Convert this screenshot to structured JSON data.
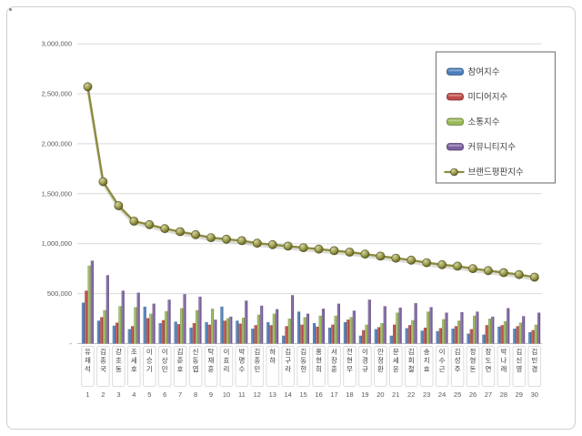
{
  "page": {
    "background": "#ffffff",
    "frame_border_color": "#cfcfcf"
  },
  "chart_data": {
    "type": "bar+line",
    "title": "",
    "grid": true,
    "gridline_color": "#d9d9d9",
    "axis_text_color": "#595959",
    "categories": [
      "유재석",
      "김종국",
      "강호동",
      "조세호",
      "이승기",
      "이상민",
      "김준호",
      "신동엽",
      "탁재훈",
      "이효리",
      "박명수",
      "김종민",
      "하하",
      "김구라",
      "김동현",
      "홍현희",
      "서장훈",
      "전현무",
      "이경규",
      "안정환",
      "문세윤",
      "김희철",
      "송지효",
      "이수근",
      "김성주",
      "정형돈",
      "장도연",
      "박나래",
      "김신영",
      "김민경"
    ],
    "ranks": [
      "1",
      "2",
      "3",
      "4",
      "5",
      "6",
      "7",
      "8",
      "9",
      "10",
      "11",
      "12",
      "13",
      "14",
      "15",
      "16",
      "17",
      "18",
      "19",
      "20",
      "21",
      "22",
      "23",
      "24",
      "25",
      "26",
      "27",
      "28",
      "29",
      "30"
    ],
    "series": [
      {
        "name": "참여지수",
        "type": "bar",
        "color": "#4a7ebb",
        "values": [
          410000,
          230000,
          180000,
          145000,
          370000,
          205000,
          220000,
          160000,
          215000,
          370000,
          230000,
          150000,
          215000,
          80000,
          320000,
          205000,
          160000,
          215000,
          80000,
          145000,
          80000,
          155000,
          130000,
          125000,
          150000,
          100000,
          90000,
          170000,
          150000,
          115000
        ]
      },
      {
        "name": "미디어지수",
        "type": "bar",
        "color": "#be4b48",
        "values": [
          530000,
          265000,
          210000,
          175000,
          255000,
          235000,
          195000,
          205000,
          190000,
          230000,
          200000,
          185000,
          185000,
          175000,
          190000,
          170000,
          190000,
          240000,
          135000,
          165000,
          190000,
          185000,
          160000,
          155000,
          175000,
          145000,
          185000,
          185000,
          175000,
          135000
        ]
      },
      {
        "name": "소통지수",
        "type": "bar",
        "color": "#98b954",
        "values": [
          780000,
          335000,
          375000,
          365000,
          300000,
          325000,
          355000,
          335000,
          350000,
          255000,
          260000,
          290000,
          300000,
          250000,
          265000,
          280000,
          280000,
          265000,
          190000,
          205000,
          310000,
          235000,
          320000,
          245000,
          230000,
          280000,
          250000,
          225000,
          210000,
          190000
        ]
      },
      {
        "name": "커뮤니티지수",
        "type": "bar",
        "color": "#7d60a0",
        "values": [
          830000,
          685000,
          530000,
          510000,
          400000,
          440000,
          495000,
          470000,
          240000,
          270000,
          430000,
          380000,
          345000,
          485000,
          300000,
          350000,
          400000,
          330000,
          440000,
          375000,
          360000,
          405000,
          365000,
          310000,
          315000,
          320000,
          270000,
          355000,
          275000,
          310000
        ]
      },
      {
        "name": "브랜드평판지수",
        "type": "line",
        "color": "#9c9c46",
        "values": [
          2570000,
          1620000,
          1380000,
          1225000,
          1190000,
          1150000,
          1120000,
          1090000,
          1060000,
          1045000,
          1030000,
          1005000,
          990000,
          975000,
          960000,
          945000,
          930000,
          915000,
          895000,
          875000,
          855000,
          835000,
          810000,
          790000,
          775000,
          750000,
          730000,
          710000,
          690000,
          665000
        ]
      }
    ],
    "y_axis": {
      "ylim": [
        0,
        3000000
      ],
      "tick_step": 500000,
      "ticks": [
        {
          "value": 3000000,
          "label": "3,000,000"
        },
        {
          "value": 2500000,
          "label": "2,500,000"
        },
        {
          "value": 2000000,
          "label": "2,000,000"
        },
        {
          "value": 1500000,
          "label": "1,500,000"
        },
        {
          "value": 1000000,
          "label": "1,000,000"
        },
        {
          "value": 500000,
          "label": "500,000"
        },
        {
          "value": 0,
          "label": "-"
        }
      ]
    },
    "legend": {
      "position": "top-right",
      "border_color": "#7f7f7f",
      "text_color": "#404040",
      "entries": [
        "참여지수",
        "미디어지수",
        "소통지수",
        "커뮤니티지수",
        "브랜드평판지수"
      ]
    }
  }
}
